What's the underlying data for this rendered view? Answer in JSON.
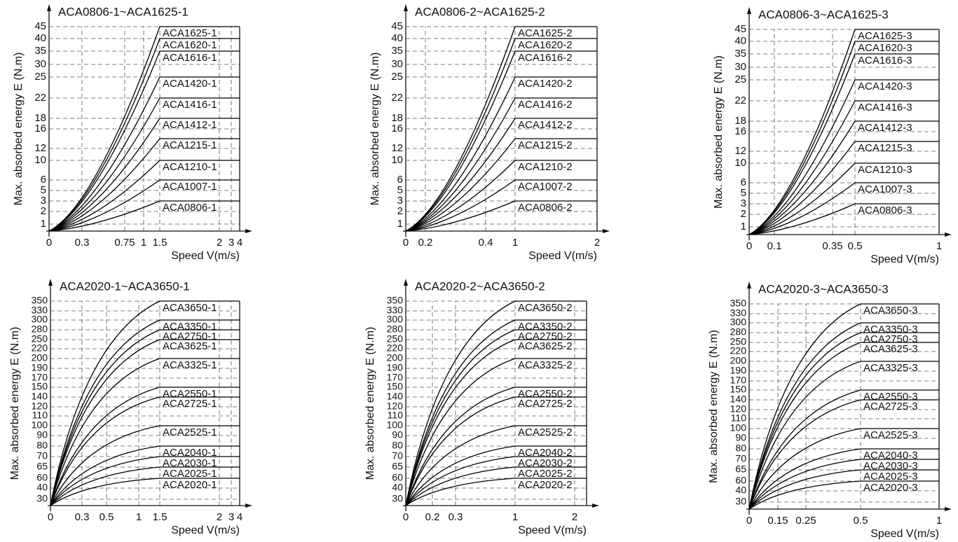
{
  "chart_data": [
    {
      "type": "line",
      "title": "ACA0806-1~ACA1625-1",
      "x_label": "Speed V(m/s)",
      "y_label": "Max. absorbed energy E  (N.m)",
      "color": "#000000",
      "grid": true,
      "x": [
        0,
        1.5,
        4
      ],
      "xlim": [
        0,
        4
      ],
      "xticks": [
        0,
        0.3,
        0.75,
        1,
        1.5,
        2,
        3,
        4
      ],
      "ylim": [
        0,
        45
      ],
      "yticks": [
        1,
        2,
        3,
        5,
        6,
        10,
        12,
        16,
        18,
        22,
        25,
        30,
        35,
        40,
        45
      ],
      "series": [
        {
          "name": "ACA1625-1",
          "values": [
            0,
            45,
            45
          ]
        },
        {
          "name": "ACA1620-1",
          "values": [
            0,
            40,
            40
          ]
        },
        {
          "name": "ACA1616-1",
          "values": [
            0,
            35,
            35
          ]
        },
        {
          "name": "ACA1420-1",
          "values": [
            0,
            25,
            25
          ]
        },
        {
          "name": "ACA1416-1",
          "values": [
            0,
            22,
            22
          ]
        },
        {
          "name": "ACA1412-1",
          "values": [
            0,
            18,
            18
          ]
        },
        {
          "name": "ACA1215-1",
          "values": [
            0,
            14,
            14
          ]
        },
        {
          "name": "ACA1210-1",
          "values": [
            0,
            10,
            10
          ]
        },
        {
          "name": "ACA1007-1",
          "values": [
            0,
            6,
            6
          ]
        },
        {
          "name": "ACA0806-1",
          "values": [
            0,
            3,
            3
          ]
        }
      ]
    },
    {
      "type": "line",
      "title": "ACA0806-2~ACA1625-2",
      "x_label": "Speed V(m/s)",
      "y_label": "Max. absorbed energy E  (N.m)",
      "color": "#000000",
      "grid": true,
      "x": [
        0,
        1,
        2
      ],
      "xlim": [
        0,
        2
      ],
      "xticks": [
        0,
        0.2,
        0.4,
        1,
        2
      ],
      "ylim": [
        0,
        45
      ],
      "yticks": [
        1,
        2,
        3,
        5,
        6,
        10,
        12,
        16,
        18,
        22,
        25,
        30,
        35,
        40,
        45
      ],
      "series": [
        {
          "name": "ACA1625-2",
          "values": [
            0,
            45,
            45
          ]
        },
        {
          "name": "ACA1620-2",
          "values": [
            0,
            40,
            40
          ]
        },
        {
          "name": "ACA1616-2",
          "values": [
            0,
            35,
            35
          ]
        },
        {
          "name": "ACA1420-2",
          "values": [
            0,
            25,
            25
          ]
        },
        {
          "name": "ACA1416-2",
          "values": [
            0,
            22,
            22
          ]
        },
        {
          "name": "ACA1412-2",
          "values": [
            0,
            18,
            18
          ]
        },
        {
          "name": "ACA1215-2",
          "values": [
            0,
            14,
            14
          ]
        },
        {
          "name": "ACA1210-2",
          "values": [
            0,
            10,
            10
          ]
        },
        {
          "name": "ACA1007-2",
          "values": [
            0,
            6,
            6
          ]
        },
        {
          "name": "ACA0806-2",
          "values": [
            0,
            3,
            3
          ]
        }
      ]
    },
    {
      "type": "line",
      "title": "ACA0806-3~ACA1625-3",
      "x_label": "Speed V(m/s)",
      "y_label": "Max. absorbed energy E  (N.m)",
      "color": "#000000",
      "grid": true,
      "x": [
        0,
        0.5,
        1
      ],
      "xlim": [
        0,
        1
      ],
      "xticks": [
        0,
        0.1,
        0.35,
        0.5,
        1
      ],
      "ylim": [
        0,
        45
      ],
      "yticks": [
        1,
        2,
        3,
        5,
        6,
        10,
        12,
        16,
        18,
        22,
        25,
        30,
        35,
        40,
        45
      ],
      "series": [
        {
          "name": "ACA1625-3",
          "values": [
            0,
            45,
            45
          ]
        },
        {
          "name": "ACA1620-3",
          "values": [
            0,
            40,
            40
          ]
        },
        {
          "name": "ACA1616-3",
          "values": [
            0,
            35,
            35
          ]
        },
        {
          "name": "ACA1420-3",
          "values": [
            0,
            25,
            25
          ]
        },
        {
          "name": "ACA1416-3",
          "values": [
            0,
            22,
            22
          ]
        },
        {
          "name": "ACA1412-3",
          "values": [
            0,
            18,
            18
          ]
        },
        {
          "name": "ACA1215-3",
          "values": [
            0,
            14,
            14
          ]
        },
        {
          "name": "ACA1210-3",
          "values": [
            0,
            10,
            10
          ]
        },
        {
          "name": "ACA1007-3",
          "values": [
            0,
            6,
            6
          ]
        },
        {
          "name": "ACA0806-3",
          "values": [
            0,
            3,
            3
          ]
        }
      ]
    },
    {
      "type": "line",
      "title": "ACA2020-1~ACA3650-1",
      "x_label": "Speed V(m/s)",
      "y_label": "Max. absorbed energy E  (N.m)",
      "color": "#000000",
      "grid": true,
      "x": [
        0,
        1.5,
        4
      ],
      "xlim": [
        0,
        4
      ],
      "xticks": [
        0,
        0.3,
        0.5,
        1,
        1.5,
        2,
        3,
        4
      ],
      "ylim": [
        25,
        350
      ],
      "yticks": [
        30,
        40,
        60,
        65,
        70,
        80,
        90,
        100,
        110,
        120,
        140,
        150,
        170,
        190,
        200,
        220,
        250,
        280,
        300,
        330,
        350
      ],
      "series": [
        {
          "name": "ACA3650-1",
          "values": [
            25,
            350,
            350
          ]
        },
        {
          "name": "ACA3350-1",
          "values": [
            25,
            300,
            300
          ]
        },
        {
          "name": "ACA2750-1",
          "values": [
            25,
            280,
            280
          ]
        },
        {
          "name": "ACA3625-1",
          "values": [
            25,
            250,
            250
          ]
        },
        {
          "name": "ACA3325-1",
          "values": [
            25,
            200,
            200
          ]
        },
        {
          "name": "ACA2550-1",
          "values": [
            25,
            150,
            150
          ]
        },
        {
          "name": "ACA2725-1",
          "values": [
            25,
            140,
            140
          ]
        },
        {
          "name": "ACA2525-1",
          "values": [
            25,
            100,
            100
          ]
        },
        {
          "name": "ACA2040-1",
          "values": [
            25,
            80,
            80
          ]
        },
        {
          "name": "ACA2030-1",
          "values": [
            25,
            70,
            70
          ]
        },
        {
          "name": "ACA2025-1",
          "values": [
            25,
            65,
            65
          ]
        },
        {
          "name": "ACA2020-1",
          "values": [
            25,
            60,
            60
          ]
        }
      ]
    },
    {
      "type": "line",
      "title": "ACA2020-2~ACA3650-2",
      "x_label": "Speed V(m/s)",
      "y_label": "Max. absorbed energy E  (N.m)",
      "color": "#000000",
      "grid": true,
      "x": [
        0,
        1,
        2.2
      ],
      "xlim": [
        0,
        2.2
      ],
      "xticks": [
        0,
        0.2,
        0.3,
        1,
        2
      ],
      "ylim": [
        25,
        350
      ],
      "yticks": [
        30,
        40,
        60,
        65,
        70,
        80,
        90,
        100,
        110,
        120,
        140,
        150,
        170,
        190,
        200,
        220,
        250,
        280,
        300,
        330,
        350
      ],
      "series": [
        {
          "name": "ACA3650-2",
          "values": [
            25,
            350,
            350
          ]
        },
        {
          "name": "ACA3350-2",
          "values": [
            25,
            300,
            300
          ]
        },
        {
          "name": "ACA2750-2",
          "values": [
            25,
            280,
            280
          ]
        },
        {
          "name": "ACA3625-2",
          "values": [
            25,
            250,
            250
          ]
        },
        {
          "name": "ACA3325-2",
          "values": [
            25,
            200,
            200
          ]
        },
        {
          "name": "ACA2550-2",
          "values": [
            25,
            150,
            150
          ]
        },
        {
          "name": "ACA2725-2",
          "values": [
            25,
            140,
            140
          ]
        },
        {
          "name": "ACA2525-2",
          "values": [
            25,
            100,
            100
          ]
        },
        {
          "name": "ACA2040-2",
          "values": [
            25,
            80,
            80
          ]
        },
        {
          "name": "ACA2030-2",
          "values": [
            25,
            70,
            70
          ]
        },
        {
          "name": "ACA2025-2",
          "values": [
            25,
            65,
            65
          ]
        },
        {
          "name": "ACA2020-2",
          "values": [
            25,
            60,
            60
          ]
        }
      ]
    },
    {
      "type": "line",
      "title": "ACA2020-3~ACA3650-3",
      "x_label": "Speed V(m/s)",
      "y_label": "Max. absorbed energy E  (N.m)",
      "color": "#000000",
      "grid": true,
      "x": [
        0,
        0.5,
        1
      ],
      "xlim": [
        0,
        1
      ],
      "xticks": [
        0,
        0.15,
        0.25,
        0.5,
        1
      ],
      "ylim": [
        25,
        350
      ],
      "yticks": [
        30,
        40,
        60,
        65,
        70,
        80,
        90,
        100,
        110,
        120,
        140,
        150,
        170,
        190,
        200,
        220,
        250,
        280,
        300,
        330,
        350
      ],
      "series": [
        {
          "name": "ACA3650-3",
          "values": [
            25,
            350,
            350
          ]
        },
        {
          "name": "ACA3350-3",
          "values": [
            25,
            300,
            300
          ]
        },
        {
          "name": "ACA2750-3",
          "values": [
            25,
            280,
            280
          ]
        },
        {
          "name": "ACA3625-3",
          "values": [
            25,
            250,
            250
          ]
        },
        {
          "name": "ACA3325-3",
          "values": [
            25,
            200,
            200
          ]
        },
        {
          "name": "ACA2550-3",
          "values": [
            25,
            150,
            150
          ]
        },
        {
          "name": "ACA2725-3",
          "values": [
            25,
            140,
            140
          ]
        },
        {
          "name": "ACA2525-3",
          "values": [
            25,
            100,
            100
          ]
        },
        {
          "name": "ACA2040-3",
          "values": [
            25,
            80,
            80
          ]
        },
        {
          "name": "ACA2030-3",
          "values": [
            25,
            70,
            70
          ]
        },
        {
          "name": "ACA2025-3",
          "values": [
            25,
            65,
            65
          ]
        },
        {
          "name": "ACA2020-3",
          "values": [
            25,
            60,
            60
          ]
        }
      ]
    }
  ]
}
